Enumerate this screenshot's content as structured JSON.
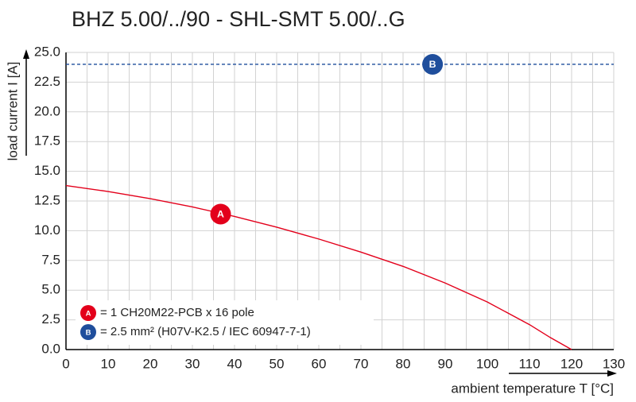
{
  "chart_data": {
    "type": "line",
    "title": "BHZ 5.00/../90 - SHL-SMT 5.00/..G",
    "x_label": "ambient temperature T [°C]",
    "y_label": "load current I [A]",
    "xlim": [
      0,
      130
    ],
    "xticks": [
      0,
      10,
      20,
      30,
      40,
      50,
      60,
      70,
      80,
      90,
      100,
      110,
      120,
      130
    ],
    "xgrid_minor": [
      5,
      15,
      25,
      35,
      45,
      55,
      65,
      75,
      85,
      95,
      105,
      115,
      125
    ],
    "ylim": [
      0,
      25
    ],
    "yticks": [
      {
        "value": 0,
        "label": "0.0"
      },
      2.5,
      {
        "value": 5,
        "label": "5.0"
      },
      7.5,
      {
        "value": 10,
        "label": "10.0"
      },
      12.5,
      {
        "value": 15,
        "label": "15.0"
      },
      17.5,
      {
        "value": 20,
        "label": "20.0"
      },
      22.5,
      {
        "value": 25,
        "label": "25.0"
      }
    ],
    "grid": true,
    "legend": "lower left",
    "series": [
      {
        "name": "= 1 CH20M22-PCB x 16 pole",
        "color": "#e3001b",
        "dash": false,
        "x": [
          0,
          10,
          20,
          30,
          40,
          50,
          60,
          70,
          80,
          90,
          100,
          110,
          115,
          120
        ],
        "values": [
          13.8,
          13.3,
          12.7,
          12.0,
          11.2,
          10.3,
          9.3,
          8.2,
          7.0,
          5.6,
          4.0,
          2.1,
          1.0,
          0
        ],
        "marker": {
          "label": "A",
          "x": 36.7,
          "y": 11.4
        }
      },
      {
        "name": "= 2.5 mm² (H07V-K2.5 / IEC 60947-7-1)",
        "color": "#1f4e9c",
        "dash": true,
        "x": [
          0,
          130
        ],
        "values": [
          24,
          24
        ],
        "marker": {
          "label": "B",
          "x": 87,
          "y": 24
        }
      }
    ]
  }
}
